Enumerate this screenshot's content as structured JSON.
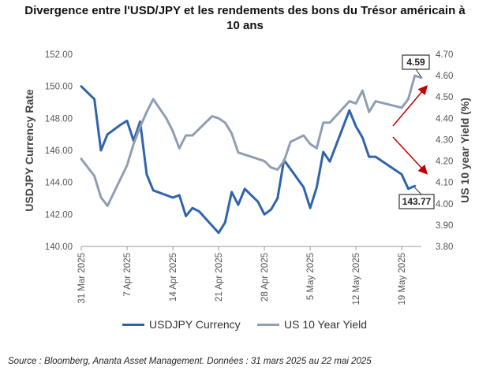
{
  "title_line1": "Divergence entre l'USD/JPY et les rendements des bons du Trésor américain à",
  "title_line2": "10 ans",
  "source": "Source : Bloomberg, Ananta Asset Management. Données : 31 mars 2025 au 22 mai 2025",
  "colors": {
    "usdjpy": "#2f64ad",
    "yield": "#8f9eb4",
    "arrow": "#c00000",
    "axis": "#777777"
  },
  "chart_data": {
    "type": "line",
    "xlabel": "",
    "x_ticks": [
      "31 Mar 2025",
      "7 Apr 2025",
      "14 Apr 2025",
      "21 Apr 2025",
      "28 Apr 2025",
      "5 May 2025",
      "12 May 2025",
      "19 May 2025"
    ],
    "x_range": [
      0,
      52
    ],
    "y_left": {
      "label": "USDJPY Currency Rate",
      "range": [
        140,
        152
      ],
      "ticks": [
        "140.00",
        "142.00",
        "144.00",
        "146.00",
        "148.00",
        "150.00",
        "152.00"
      ]
    },
    "y_right": {
      "label": "US 10 year Yield (%)",
      "range": [
        3.8,
        4.7
      ],
      "ticks": [
        "3.80",
        "3.90",
        "4.00",
        "4.10",
        "4.20",
        "4.30",
        "4.40",
        "4.50",
        "4.60",
        "4.70"
      ]
    },
    "series": [
      {
        "name": "USDJPY Currency",
        "axis": "left",
        "x": [
          0,
          1,
          2,
          3,
          4,
          6,
          7,
          8,
          9,
          10,
          11,
          13,
          14,
          15,
          16,
          17,
          18,
          20,
          21,
          22,
          23,
          24,
          25,
          27,
          28,
          29,
          30,
          31,
          34,
          35,
          36,
          37,
          38,
          41,
          42,
          43,
          44,
          45,
          49,
          50,
          51
        ],
        "values": [
          150.0,
          149.6,
          149.2,
          146.0,
          147.0,
          147.6,
          147.85,
          146.6,
          147.8,
          144.5,
          143.5,
          143.2,
          143.05,
          143.2,
          141.9,
          142.4,
          142.2,
          141.3,
          140.85,
          141.5,
          143.4,
          142.6,
          143.6,
          142.8,
          142.0,
          142.3,
          143.0,
          145.4,
          143.7,
          142.4,
          143.7,
          145.9,
          145.3,
          148.5,
          147.5,
          146.8,
          145.6,
          145.6,
          144.5,
          143.6,
          143.77
        ]
      },
      {
        "name": "US 10 Year Yield",
        "axis": "right",
        "x": [
          0,
          2,
          3,
          4,
          7,
          8,
          9,
          10,
          11,
          13,
          14,
          15,
          16,
          17,
          18,
          20,
          21,
          22,
          23,
          24,
          25,
          27,
          28,
          29,
          30,
          31,
          32,
          34,
          35,
          36,
          37,
          38,
          41,
          42,
          43,
          44,
          45,
          49,
          50,
          51,
          52
        ],
        "values": [
          4.21,
          4.13,
          4.03,
          3.99,
          4.18,
          4.28,
          4.36,
          4.43,
          4.49,
          4.4,
          4.34,
          4.26,
          4.32,
          4.32,
          4.35,
          4.41,
          4.4,
          4.38,
          4.33,
          4.24,
          4.23,
          4.21,
          4.2,
          4.17,
          4.16,
          4.2,
          4.29,
          4.32,
          4.28,
          4.26,
          4.38,
          4.38,
          4.48,
          4.47,
          4.53,
          4.43,
          4.48,
          4.45,
          4.49,
          4.6,
          4.59
        ]
      }
    ],
    "annotations": [
      "4.59",
      "143.77"
    ],
    "grid": false,
    "legend": "bottom"
  }
}
